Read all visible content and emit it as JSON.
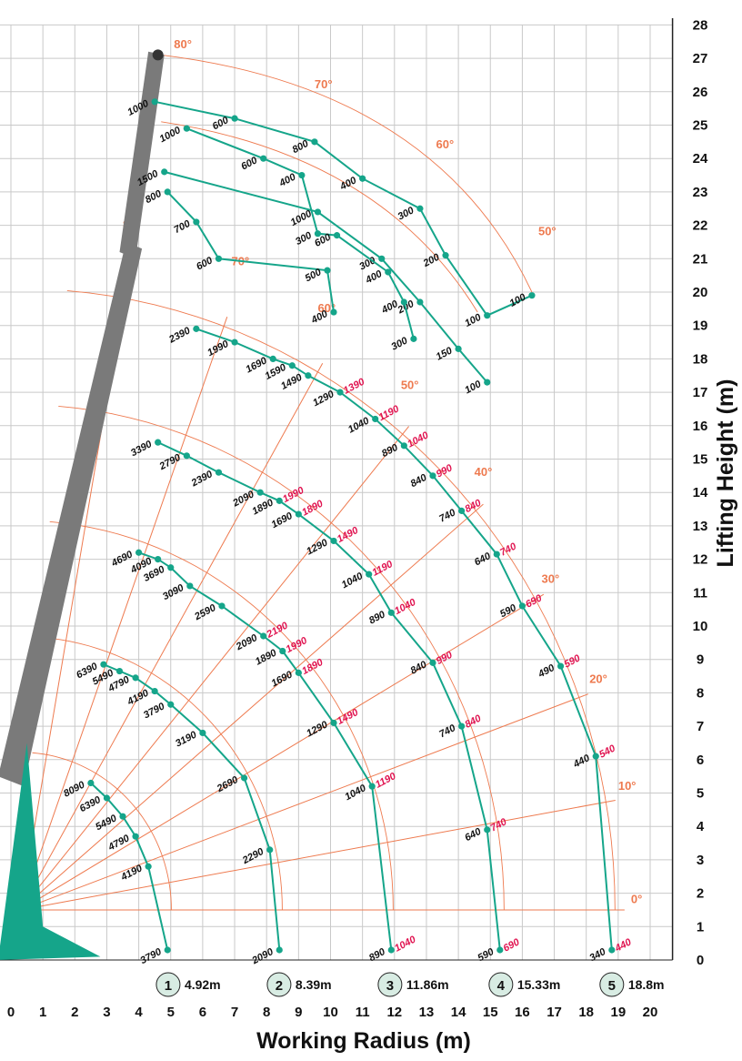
{
  "chart_data": {
    "type": "line",
    "xlabel": "Working Radius (m)",
    "ylabel": "Lifting Height (m)",
    "xlim": [
      0,
      20
    ],
    "ylim": [
      0,
      28
    ],
    "x_ticks": [
      0,
      1,
      2,
      3,
      4,
      5,
      6,
      7,
      8,
      9,
      10,
      11,
      12,
      13,
      14,
      15,
      16,
      17,
      18,
      19,
      20
    ],
    "y_ticks": [
      0,
      1,
      2,
      3,
      4,
      5,
      6,
      7,
      8,
      9,
      10,
      11,
      12,
      13,
      14,
      15,
      16,
      17,
      18,
      19,
      20,
      21,
      22,
      23,
      24,
      25,
      26,
      27,
      28
    ],
    "grid": true,
    "colors": {
      "curve": "#15a58a",
      "angle": "#ee7a4f",
      "label": "#111111",
      "label_alt": "#e0124f",
      "boom": "#7a7a7a",
      "badge": "#d8ece3"
    },
    "boom_radius_badges": [
      {
        "n": "1",
        "radius": 4.92,
        "text": "4.92m"
      },
      {
        "n": "2",
        "radius": 8.39,
        "text": "8.39m"
      },
      {
        "n": "3",
        "radius": 11.86,
        "text": "11.86m"
      },
      {
        "n": "4",
        "radius": 15.33,
        "text": "15.33m"
      },
      {
        "n": "5",
        "radius": 18.8,
        "text": "18.8m"
      }
    ],
    "main_curves": [
      {
        "center": [
          0.3,
          1.5
        ],
        "points": [
          {
            "x": 4.9,
            "y": 0.3,
            "label": "3790"
          },
          {
            "x": 4.3,
            "y": 2.8,
            "label": "4190"
          },
          {
            "x": 3.9,
            "y": 3.7,
            "label": "4790"
          },
          {
            "x": 3.5,
            "y": 4.3,
            "label": "5490"
          },
          {
            "x": 3.0,
            "y": 4.85,
            "label": "6390"
          },
          {
            "x": 2.5,
            "y": 5.3,
            "label": "8090"
          }
        ]
      },
      {
        "center": [
          0.3,
          1.5
        ],
        "points": [
          {
            "x": 8.4,
            "y": 0.3,
            "label": "2090"
          },
          {
            "x": 8.1,
            "y": 3.3,
            "label": "2290"
          },
          {
            "x": 7.3,
            "y": 5.45,
            "label": "2690"
          },
          {
            "x": 6.0,
            "y": 6.8,
            "label": "3190"
          },
          {
            "x": 5.0,
            "y": 7.65,
            "label": "3790"
          },
          {
            "x": 4.5,
            "y": 8.05,
            "label": "4190"
          },
          {
            "x": 3.9,
            "y": 8.45,
            "label": "4790"
          },
          {
            "x": 3.4,
            "y": 8.65,
            "label": "5490"
          },
          {
            "x": 2.9,
            "y": 8.85,
            "label": "6390"
          }
        ]
      },
      {
        "center": [
          0.3,
          1.5
        ],
        "points": [
          {
            "x": 11.9,
            "y": 0.3,
            "label": "890",
            "label2": "1040"
          },
          {
            "x": 11.3,
            "y": 5.2,
            "label": "1040",
            "label2": "1190"
          },
          {
            "x": 10.1,
            "y": 7.1,
            "label": "1290",
            "label2": "1490"
          },
          {
            "x": 9.0,
            "y": 8.6,
            "label": "1690",
            "label2": "1890"
          },
          {
            "x": 8.5,
            "y": 9.25,
            "label": "1890",
            "label2": "1990"
          },
          {
            "x": 7.9,
            "y": 9.7,
            "label": "2090",
            "label2": "2190"
          },
          {
            "x": 6.6,
            "y": 10.6,
            "label": "2590"
          },
          {
            "x": 5.6,
            "y": 11.2,
            "label": "3090"
          },
          {
            "x": 5.0,
            "y": 11.75,
            "label": "3690"
          },
          {
            "x": 4.6,
            "y": 12.0,
            "label": "4090"
          },
          {
            "x": 4.0,
            "y": 12.2,
            "label": "4690"
          }
        ]
      },
      {
        "center": [
          0.3,
          1.5
        ],
        "points": [
          {
            "x": 15.3,
            "y": 0.3,
            "label": "590",
            "label2": "690"
          },
          {
            "x": 14.9,
            "y": 3.9,
            "label": "640",
            "label2": "740"
          },
          {
            "x": 14.1,
            "y": 7.0,
            "label": "740",
            "label2": "840"
          },
          {
            "x": 13.2,
            "y": 8.9,
            "label": "840",
            "label2": "990"
          },
          {
            "x": 11.9,
            "y": 10.4,
            "label": "890",
            "label2": "1040"
          },
          {
            "x": 11.2,
            "y": 11.55,
            "label": "1040",
            "label2": "1190"
          },
          {
            "x": 10.1,
            "y": 12.55,
            "label": "1290",
            "label2": "1490"
          },
          {
            "x": 9.0,
            "y": 13.35,
            "label": "1690",
            "label2": "1890"
          },
          {
            "x": 8.4,
            "y": 13.75,
            "label": "1890",
            "label2": "1990"
          },
          {
            "x": 7.8,
            "y": 14.0,
            "label": "2090"
          },
          {
            "x": 6.5,
            "y": 14.6,
            "label": "2390"
          },
          {
            "x": 5.5,
            "y": 15.1,
            "label": "2790"
          },
          {
            "x": 4.6,
            "y": 15.5,
            "label": "3390"
          }
        ]
      },
      {
        "center": [
          0.3,
          1.5
        ],
        "points": [
          {
            "x": 18.8,
            "y": 0.3,
            "label": "340",
            "label2": "440"
          },
          {
            "x": 18.3,
            "y": 6.1,
            "label": "440",
            "label2": "540"
          },
          {
            "x": 17.2,
            "y": 8.8,
            "label": "490",
            "label2": "590"
          },
          {
            "x": 16.0,
            "y": 10.6,
            "label": "590",
            "label2": "690"
          },
          {
            "x": 15.2,
            "y": 12.15,
            "label": "640",
            "label2": "740"
          },
          {
            "x": 14.1,
            "y": 13.45,
            "label": "740",
            "label2": "840"
          },
          {
            "x": 13.2,
            "y": 14.5,
            "label": "840",
            "label2": "990"
          },
          {
            "x": 12.3,
            "y": 15.4,
            "label": "890",
            "label2": "1040"
          },
          {
            "x": 11.4,
            "y": 16.2,
            "label": "1040",
            "label2": "1190"
          },
          {
            "x": 10.3,
            "y": 17.0,
            "label": "1290",
            "label2": "1390"
          },
          {
            "x": 9.3,
            "y": 17.5,
            "label": "1490"
          },
          {
            "x": 8.8,
            "y": 17.8,
            "label": "1590"
          },
          {
            "x": 8.2,
            "y": 18.0,
            "label": "1690"
          },
          {
            "x": 7.0,
            "y": 18.5,
            "label": "1990"
          },
          {
            "x": 5.8,
            "y": 18.9,
            "label": "2390"
          }
        ]
      }
    ],
    "jib_curves": [
      {
        "center": [
          4.8,
          19.0
        ],
        "points": [
          {
            "x": 14.9,
            "y": 17.3,
            "label": "100"
          },
          {
            "x": 14.0,
            "y": 18.3,
            "label": "150"
          },
          {
            "x": 12.8,
            "y": 19.7,
            "label": "200"
          },
          {
            "x": 11.6,
            "y": 21.0,
            "label": "300"
          },
          {
            "x": 9.6,
            "y": 22.4,
            "label": "1000"
          },
          {
            "x": 4.8,
            "y": 23.6,
            "label": "1500"
          }
        ]
      },
      {
        "center": [
          4.8,
          19.0
        ],
        "points": [
          {
            "x": 12.6,
            "y": 18.6,
            "label": "300"
          },
          {
            "x": 12.3,
            "y": 19.7,
            "label": "400"
          },
          {
            "x": 11.8,
            "y": 20.6,
            "label": "400"
          },
          {
            "x": 10.2,
            "y": 21.7,
            "label": "600"
          },
          {
            "x": 9.6,
            "y": 21.75,
            "label": "300"
          },
          {
            "x": 9.1,
            "y": 23.5,
            "label": "400"
          },
          {
            "x": 7.9,
            "y": 24.0,
            "label": "600"
          },
          {
            "x": 5.5,
            "y": 24.9,
            "label": "1000"
          }
        ]
      },
      {
        "center": [
          4.8,
          19.0
        ],
        "points": [
          {
            "x": 10.1,
            "y": 19.4,
            "label": "400"
          },
          {
            "x": 9.9,
            "y": 20.65,
            "label": "500"
          },
          {
            "x": 6.5,
            "y": 21.0,
            "label": "600"
          },
          {
            "x": 5.8,
            "y": 22.1,
            "label": "700"
          },
          {
            "x": 4.9,
            "y": 23.0,
            "label": "800"
          }
        ]
      },
      {
        "center": [
          4.8,
          19.0
        ],
        "points": [
          {
            "x": 16.3,
            "y": 19.9,
            "label": "100"
          },
          {
            "x": 14.9,
            "y": 19.3,
            "label": "100"
          },
          {
            "x": 13.6,
            "y": 21.1,
            "label": "200"
          },
          {
            "x": 12.8,
            "y": 22.5,
            "label": "300"
          },
          {
            "x": 11.0,
            "y": 23.4,
            "label": "400"
          },
          {
            "x": 9.5,
            "y": 24.5,
            "label": "800"
          },
          {
            "x": 7.0,
            "y": 25.2,
            "label": "600"
          },
          {
            "x": 4.5,
            "y": 25.7,
            "label": "1000"
          }
        ]
      }
    ],
    "angle_lines": [
      {
        "label": "0°",
        "angle": 0
      },
      {
        "label": "10°",
        "angle": 10
      },
      {
        "label": "20°",
        "angle": 20
      },
      {
        "label": "30°",
        "angle": 30
      },
      {
        "label": "40°",
        "angle": 40
      },
      {
        "label": "50°",
        "angle": 50
      },
      {
        "label": "60°",
        "angle": 60
      },
      {
        "label": "70°",
        "angle": 70
      },
      {
        "label": "80°",
        "angle": 80
      }
    ],
    "jib_angle_labels": [
      {
        "label": "80°",
        "x": 5.1,
        "y": 27.3
      },
      {
        "label": "70°",
        "x": 9.5,
        "y": 26.1
      },
      {
        "label": "60°",
        "x": 13.3,
        "y": 24.3
      },
      {
        "label": "50°",
        "x": 16.5,
        "y": 21.7
      }
    ]
  }
}
